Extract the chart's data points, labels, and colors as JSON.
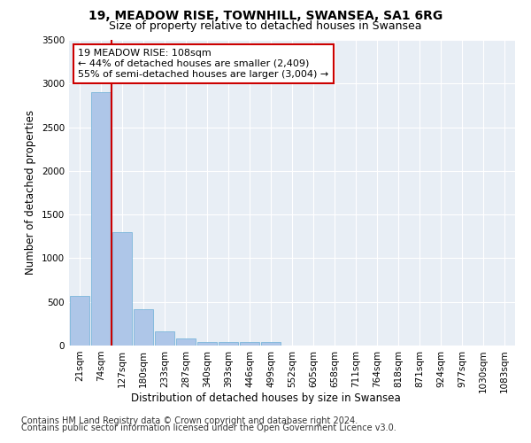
{
  "title_line1": "19, MEADOW RISE, TOWNHILL, SWANSEA, SA1 6RG",
  "title_line2": "Size of property relative to detached houses in Swansea",
  "xlabel": "Distribution of detached houses by size in Swansea",
  "ylabel": "Number of detached properties",
  "categories": [
    "21sqm",
    "74sqm",
    "127sqm",
    "180sqm",
    "233sqm",
    "287sqm",
    "340sqm",
    "393sqm",
    "446sqm",
    "499sqm",
    "552sqm",
    "605sqm",
    "658sqm",
    "711sqm",
    "764sqm",
    "818sqm",
    "871sqm",
    "924sqm",
    "977sqm",
    "1030sqm",
    "1083sqm"
  ],
  "values": [
    570,
    2900,
    1300,
    420,
    160,
    80,
    45,
    45,
    40,
    40,
    0,
    0,
    0,
    0,
    0,
    0,
    0,
    0,
    0,
    0,
    0
  ],
  "bar_color": "#aec6e8",
  "bar_edge_color": "#6aaed6",
  "property_line_color": "#cc0000",
  "annotation_text": "19 MEADOW RISE: 108sqm\n← 44% of detached houses are smaller (2,409)\n55% of semi-detached houses are larger (3,004) →",
  "annotation_box_color": "white",
  "annotation_box_edge_color": "#cc0000",
  "ylim": [
    0,
    3500
  ],
  "yticks": [
    0,
    500,
    1000,
    1500,
    2000,
    2500,
    3000,
    3500
  ],
  "background_color": "#e8eef5",
  "footer_line1": "Contains HM Land Registry data © Crown copyright and database right 2024.",
  "footer_line2": "Contains public sector information licensed under the Open Government Licence v3.0.",
  "title_fontsize": 10,
  "subtitle_fontsize": 9,
  "axis_label_fontsize": 8.5,
  "tick_fontsize": 7.5,
  "annotation_fontsize": 8,
  "footer_fontsize": 7
}
